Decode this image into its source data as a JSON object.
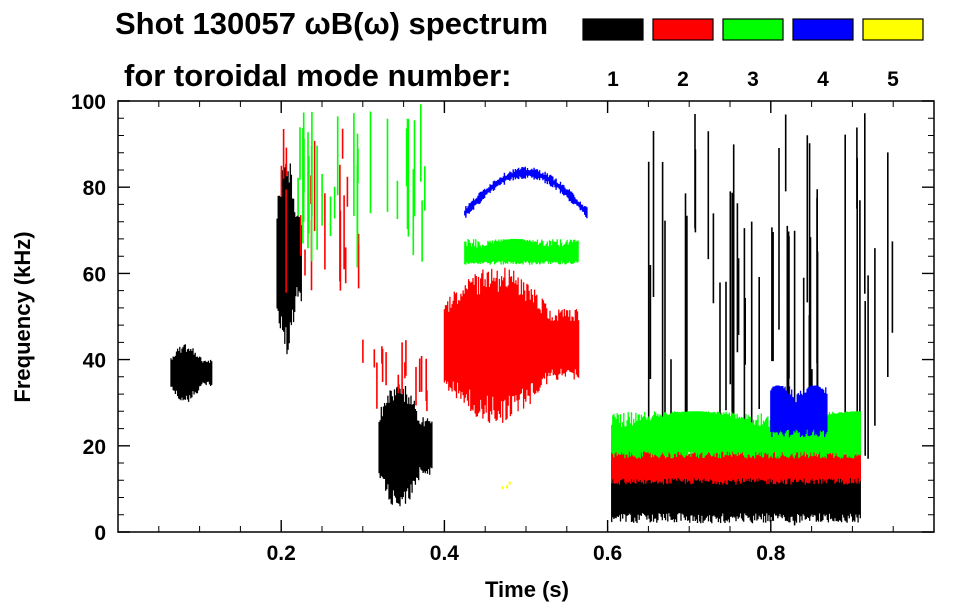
{
  "chart_data": {
    "type": "heatmap",
    "title_line1": "Shot 130057 ωB(ω) spectrum",
    "title_line2": "for toroidal mode number:",
    "xlabel": "Time (s)",
    "ylabel": "Frequency (kHz)",
    "xlim": [
      0.0,
      1.0
    ],
    "ylim": [
      0,
      100
    ],
    "x_ticks": [
      0.2,
      0.4,
      0.6,
      0.8
    ],
    "x_tick_labels": [
      "0.2",
      "0.4",
      "0.6",
      "0.8"
    ],
    "y_ticks": [
      0,
      20,
      40,
      60,
      80,
      100
    ],
    "y_tick_labels": [
      "0",
      "20",
      "40",
      "60",
      "80",
      "100"
    ],
    "legend": [
      {
        "label": "1",
        "color": "#000000"
      },
      {
        "label": "2",
        "color": "#ff0000"
      },
      {
        "label": "3",
        "color": "#00ff00"
      },
      {
        "label": "4",
        "color": "#0000ff"
      },
      {
        "label": "5",
        "color": "#ffff00"
      }
    ],
    "legend_placement": "top-right",
    "features": [
      {
        "n": 1,
        "t": [
          0.065,
          0.115
        ],
        "f": [
          30,
          44
        ],
        "kind": "blob"
      },
      {
        "n": 1,
        "t": [
          0.195,
          0.225
        ],
        "f": [
          40,
          88
        ],
        "kind": "blob"
      },
      {
        "n": 1,
        "t": [
          0.32,
          0.385
        ],
        "f": [
          5,
          35
        ],
        "kind": "blob"
      },
      {
        "n": 1,
        "t": [
          0.605,
          0.91
        ],
        "f": [
          2,
          18
        ],
        "kind": "band"
      },
      {
        "n": 1,
        "t": [
          0.64,
          0.95
        ],
        "f": [
          0,
          100
        ],
        "kind": "streaks"
      },
      {
        "n": 2,
        "t": [
          0.195,
          0.3
        ],
        "f": [
          55,
          95
        ],
        "kind": "streaks"
      },
      {
        "n": 2,
        "t": [
          0.4,
          0.565
        ],
        "f": [
          25,
          62
        ],
        "kind": "blob"
      },
      {
        "n": 2,
        "t": [
          0.3,
          0.39
        ],
        "f": [
          28,
          45
        ],
        "kind": "streaks"
      },
      {
        "n": 2,
        "t": [
          0.605,
          0.91
        ],
        "f": [
          11,
          21
        ],
        "kind": "band"
      },
      {
        "n": 3,
        "t": [
          0.205,
          0.38
        ],
        "f": [
          60,
          100
        ],
        "kind": "streaks"
      },
      {
        "n": 3,
        "t": [
          0.425,
          0.565
        ],
        "f": [
          62,
          68
        ],
        "kind": "band"
      },
      {
        "n": 3,
        "t": [
          0.605,
          0.91
        ],
        "f": [
          17,
          28
        ],
        "kind": "band"
      },
      {
        "n": 4,
        "t": [
          0.425,
          0.575
        ],
        "f": [
          74,
          85
        ],
        "kind": "arc"
      },
      {
        "n": 4,
        "t": [
          0.8,
          0.87
        ],
        "f": [
          22,
          34
        ],
        "kind": "band"
      },
      {
        "n": 5,
        "t": [
          0.47,
          0.48
        ],
        "f": [
          10,
          12
        ],
        "kind": "dots"
      }
    ]
  }
}
